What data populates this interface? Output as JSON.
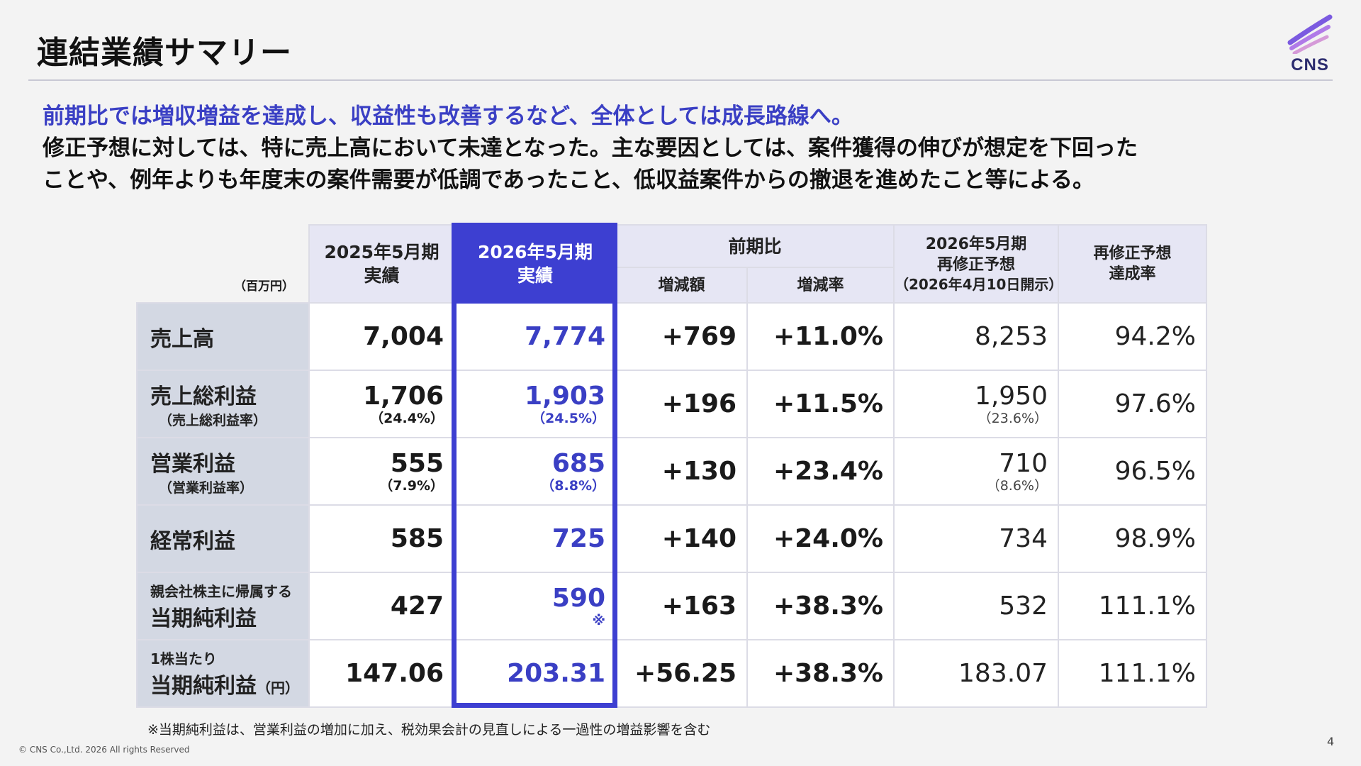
{
  "title": "連結業績サマリー",
  "logo_text": "CNS",
  "lead": {
    "highlight": "前期比では増収増益を達成し、収益性も改善するなど、全体としては成長路線へ。",
    "line2": "修正予想に対しては、特に売上高において未達となった。主な要因としては、案件獲得の伸びが想定を下回った",
    "line3": "ことや、例年よりも年度末の案件需要が低調であったこと、低収益案件からの撤退を進めたこと等による。"
  },
  "table": {
    "unit_label": "（百万円）",
    "headers": {
      "fy2025_line1": "2025年5月期",
      "fy2025_line2": "実績",
      "fy2026_line1": "2026年5月期",
      "fy2026_line2": "実績",
      "yoy": "前期比",
      "yoy_amount": "増減額",
      "yoy_rate": "増減率",
      "forecast_line1": "2026年5月期",
      "forecast_line2": "再修正予想",
      "forecast_line3": "（2026年4月10日開示）",
      "achieve_line1": "再修正予想",
      "achieve_line2": "達成率"
    },
    "rows": [
      {
        "label": "売上高",
        "sub": "",
        "pre": "",
        "unit": "",
        "fy2025": "7,004",
        "fy2025_sub": "",
        "fy2026": "7,774",
        "fy2026_sub": "",
        "yoy_amount": "+769",
        "yoy_rate": "+11.0%",
        "forecast": "8,253",
        "forecast_sub": "",
        "achieve": "94.2%"
      },
      {
        "label": "売上総利益",
        "sub": "（売上総利益率）",
        "pre": "",
        "unit": "",
        "fy2025": "1,706",
        "fy2025_sub": "（24.4%）",
        "fy2026": "1,903",
        "fy2026_sub": "（24.5%）",
        "yoy_amount": "+196",
        "yoy_rate": "+11.5%",
        "forecast": "1,950",
        "forecast_sub": "（23.6%）",
        "achieve": "97.6%"
      },
      {
        "label": "営業利益",
        "sub": "（営業利益率）",
        "pre": "",
        "unit": "",
        "fy2025": "555",
        "fy2025_sub": "（7.9%）",
        "fy2026": "685",
        "fy2026_sub": "（8.8%）",
        "yoy_amount": "+130",
        "yoy_rate": "+23.4%",
        "forecast": "710",
        "forecast_sub": "（8.6%）",
        "achieve": "96.5%"
      },
      {
        "label": "経常利益",
        "sub": "",
        "pre": "",
        "unit": "",
        "fy2025": "585",
        "fy2025_sub": "",
        "fy2026": "725",
        "fy2026_sub": "",
        "yoy_amount": "+140",
        "yoy_rate": "+24.0%",
        "forecast": "734",
        "forecast_sub": "",
        "achieve": "98.9%"
      },
      {
        "label": "当期純利益",
        "sub": "",
        "pre": "親会社株主に帰属する",
        "unit": "",
        "fy2025": "427",
        "fy2025_sub": "",
        "fy2026": "590",
        "fy2026_sub": "※",
        "yoy_amount": "+163",
        "yoy_rate": "+38.3%",
        "forecast": "532",
        "forecast_sub": "",
        "achieve": "111.1%"
      },
      {
        "label": "当期純利益",
        "sub": "",
        "pre": "1株当たり",
        "unit": "（円）",
        "fy2025": "147.06",
        "fy2025_sub": "",
        "fy2026": "203.31",
        "fy2026_sub": "",
        "yoy_amount": "+56.25",
        "yoy_rate": "+38.3%",
        "forecast": "183.07",
        "forecast_sub": "",
        "achieve": "111.1%"
      }
    ]
  },
  "footnote": "※当期純利益は、営業利益の増加に加え、税効果会計の見直しによる一過性の増益影響を含む",
  "copyright": "© CNS Co.,Ltd. 2026 All rights Reserved",
  "page_number": "4",
  "colors": {
    "accent": "#3d3fd1",
    "header_bg": "#e6e6f4",
    "label_bg": "#d3d8e3"
  }
}
